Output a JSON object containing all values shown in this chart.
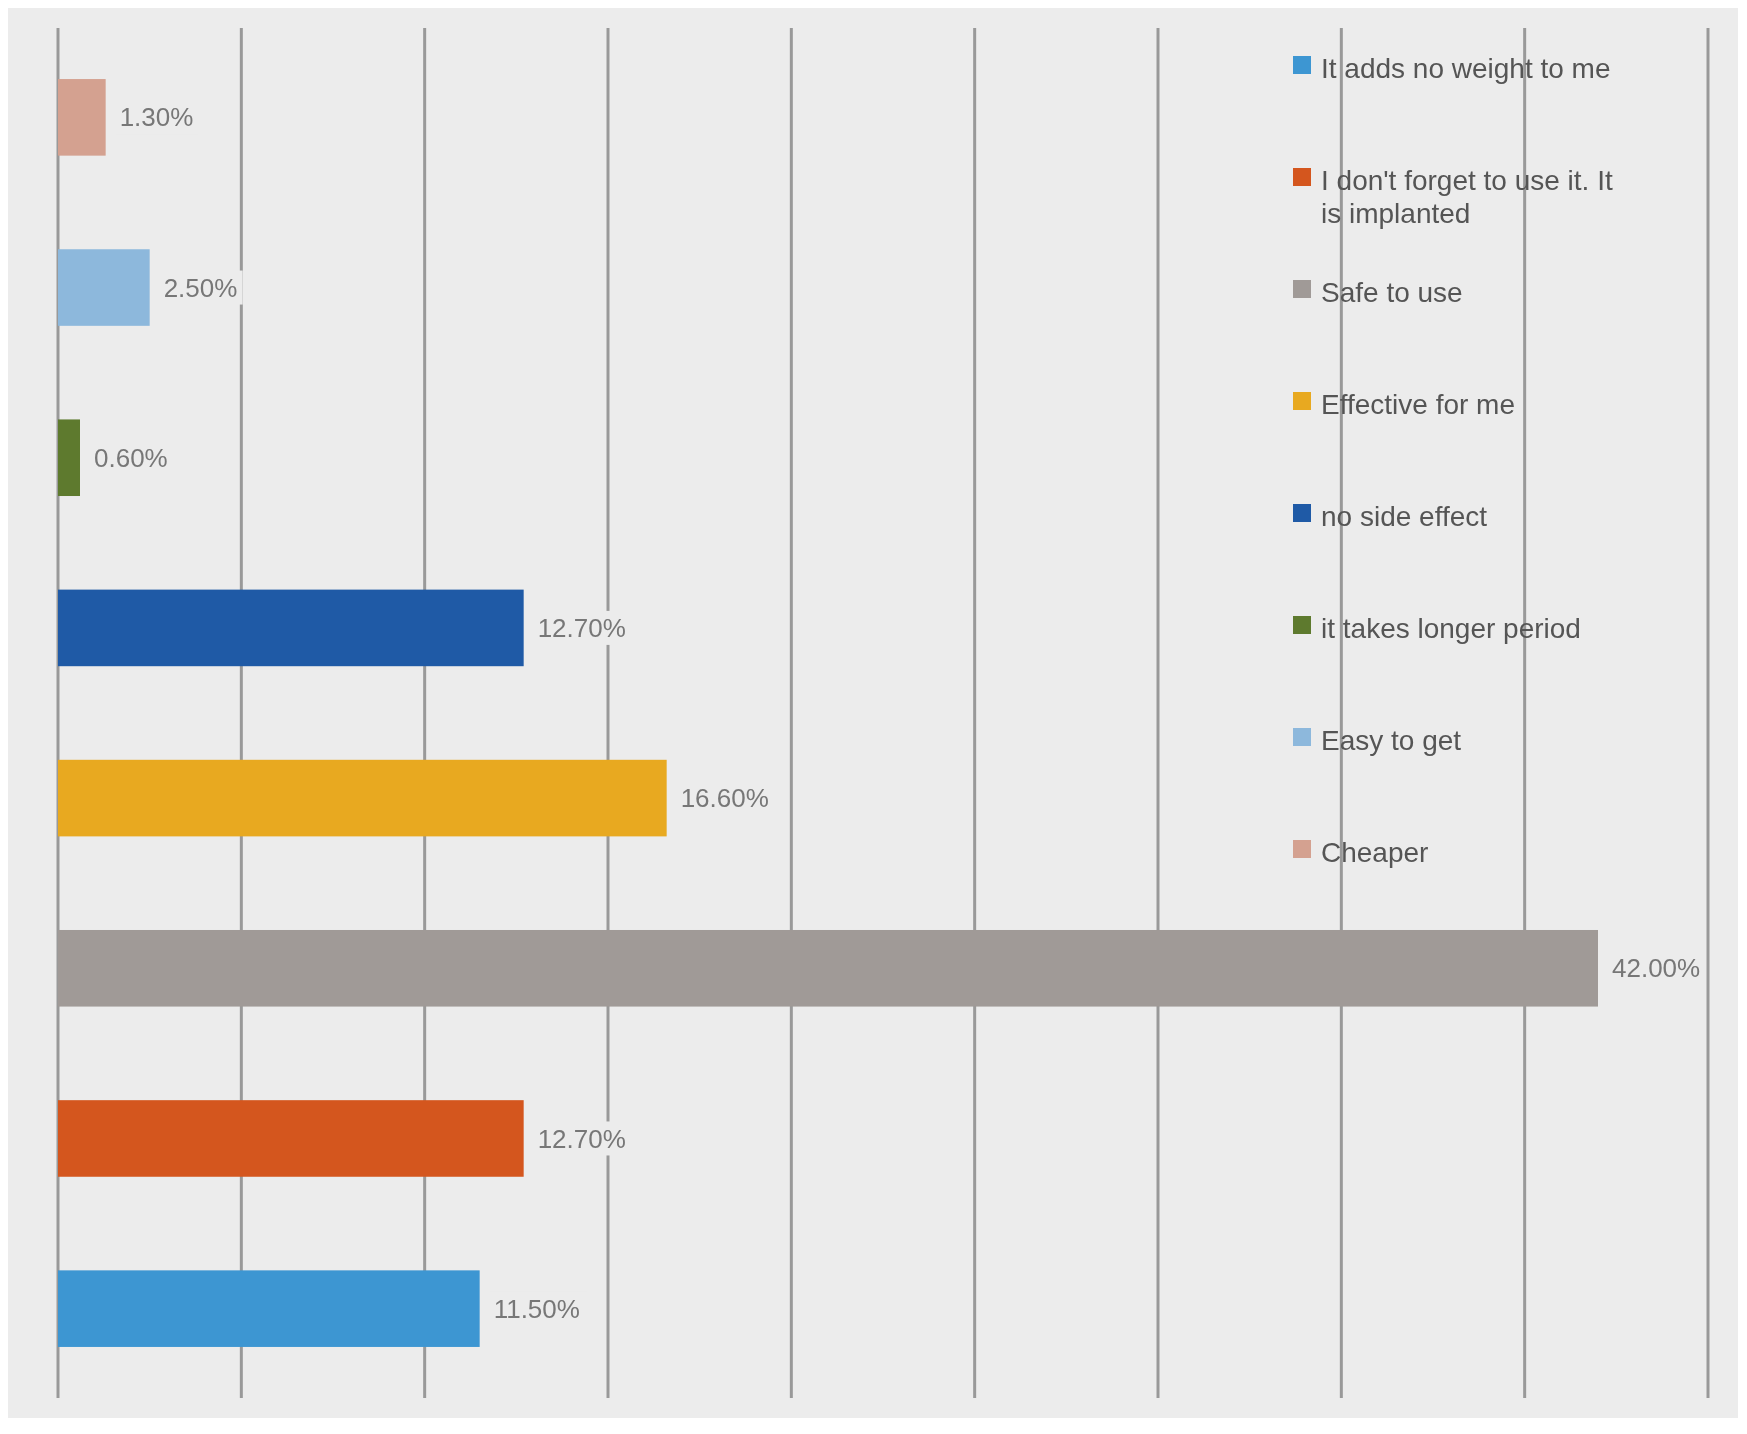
{
  "chart_data": {
    "type": "bar",
    "orientation": "horizontal",
    "stacked": true,
    "categories": [
      null,
      null,
      null,
      null,
      null,
      null,
      null,
      null
    ],
    "series": [
      {
        "name": "It adds no weight to me",
        "color": "#3d96d2",
        "values": [
          null,
          null,
          null,
          null,
          null,
          null,
          null,
          11.5
        ],
        "value_labels": [
          null,
          null,
          null,
          null,
          null,
          null,
          null,
          "11.50%"
        ]
      },
      {
        "name": "I don't forget to use it. It is implanted",
        "color": "#d4561e",
        "values": [
          null,
          null,
          null,
          null,
          null,
          null,
          12.7,
          null
        ],
        "value_labels": [
          null,
          null,
          null,
          null,
          null,
          null,
          "12.70%",
          null
        ]
      },
      {
        "name": "Safe to use",
        "color": "#a09a97",
        "values": [
          null,
          null,
          null,
          null,
          null,
          42.0,
          null,
          null
        ],
        "value_labels": [
          null,
          null,
          null,
          null,
          null,
          "42.00%",
          null,
          null
        ]
      },
      {
        "name": "Effective for me",
        "color": "#e8a920",
        "values": [
          null,
          null,
          null,
          null,
          16.6,
          null,
          null,
          null
        ],
        "value_labels": [
          null,
          null,
          null,
          null,
          "16.60%",
          null,
          null,
          null
        ]
      },
      {
        "name": "no side effect",
        "color": "#1f5aa6",
        "values": [
          null,
          null,
          null,
          12.7,
          null,
          null,
          null,
          null
        ],
        "value_labels": [
          null,
          null,
          null,
          "12.70%",
          null,
          null,
          null,
          null
        ]
      },
      {
        "name": "it takes longer period",
        "color": "#5e7a2e",
        "values": [
          null,
          null,
          0.6,
          null,
          null,
          null,
          null,
          null
        ],
        "value_labels": [
          null,
          null,
          "0.60%",
          null,
          null,
          null,
          null,
          null
        ]
      },
      {
        "name": "Easy to get",
        "color": "#8db8dc",
        "values": [
          null,
          2.5,
          null,
          null,
          null,
          null,
          null,
          null
        ],
        "value_labels": [
          null,
          "2.50%",
          null,
          null,
          null,
          null,
          null,
          null
        ]
      },
      {
        "name": "Cheaper",
        "color": "#d4a190",
        "values": [
          1.3,
          null,
          null,
          null,
          null,
          null,
          null,
          null
        ],
        "value_labels": [
          "1.30%",
          null,
          null,
          null,
          null,
          null,
          null,
          null
        ]
      }
    ],
    "xlim": [
      0,
      45
    ],
    "xticks": [
      {
        "value": 0,
        "label": null
      },
      {
        "value": 5,
        "label": null
      },
      {
        "value": 10,
        "label": null
      },
      {
        "value": 15,
        "label": null
      },
      {
        "value": 20,
        "label": null
      },
      {
        "value": 25,
        "label": null
      },
      {
        "value": 30,
        "label": null
      },
      {
        "value": 35,
        "label": null
      },
      {
        "value": 40,
        "label": null
      },
      {
        "value": 45,
        "label": null
      }
    ],
    "tick_labels": false,
    "grid": "x",
    "legend": "top right"
  }
}
